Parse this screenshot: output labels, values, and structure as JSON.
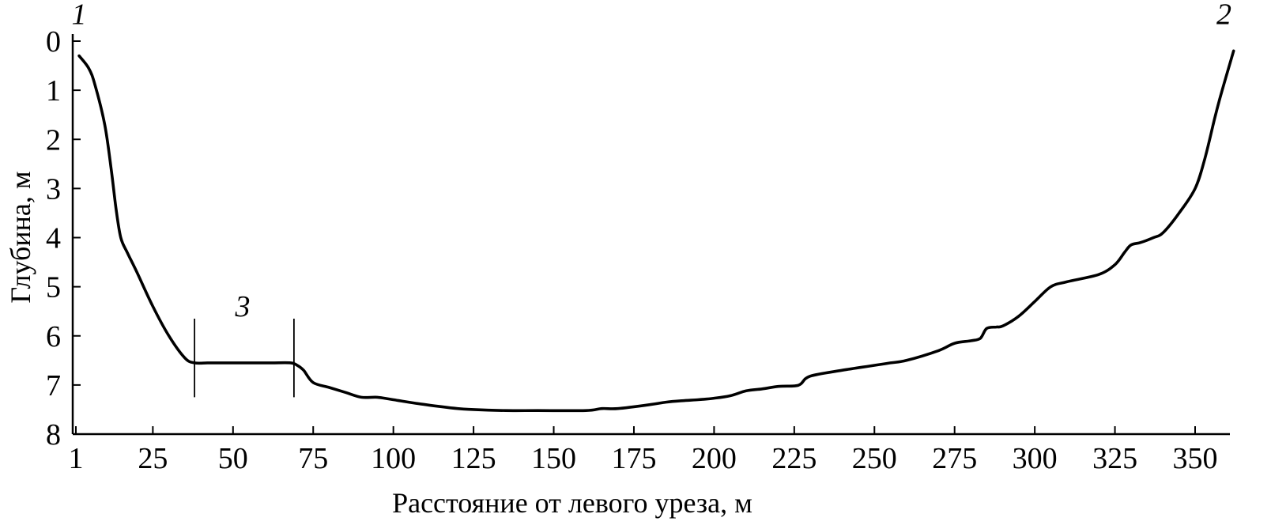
{
  "chart_data": {
    "type": "line",
    "title": "",
    "xlabel": "Расстояние от левого уреза, м",
    "ylabel": "Глубина, м",
    "xlim": [
      1,
      362
    ],
    "ylim": [
      0,
      8
    ],
    "y_inverted": true,
    "grid": false,
    "legend": "none",
    "x_ticks": [
      {
        "value": 1,
        "label": "1"
      },
      {
        "value": 25,
        "label": "25"
      },
      {
        "value": 50,
        "label": "50"
      },
      {
        "value": 75,
        "label": "75"
      },
      {
        "value": 100,
        "label": "100"
      },
      {
        "value": 125,
        "label": "125"
      },
      {
        "value": 150,
        "label": "150"
      },
      {
        "value": 175,
        "label": "175"
      },
      {
        "value": 200,
        "label": "200"
      },
      {
        "value": 225,
        "label": "225"
      },
      {
        "value": 250,
        "label": "250"
      },
      {
        "value": 275,
        "label": "275"
      },
      {
        "value": 300,
        "label": "300"
      },
      {
        "value": 325,
        "label": "325"
      },
      {
        "value": 350,
        "label": "350"
      }
    ],
    "y_ticks": [
      {
        "value": 0,
        "label": "0"
      },
      {
        "value": 1,
        "label": "1"
      },
      {
        "value": 2,
        "label": "2"
      },
      {
        "value": 3,
        "label": "3"
      },
      {
        "value": 4,
        "label": "4"
      },
      {
        "value": 5,
        "label": "5"
      },
      {
        "value": 6,
        "label": "6"
      },
      {
        "value": 7,
        "label": "7"
      },
      {
        "value": 8,
        "label": "8"
      }
    ],
    "series": [
      {
        "color": "#000000",
        "x": [
          2,
          5,
          7,
          10,
          12,
          13.5,
          15,
          17,
          20,
          25,
          30,
          35,
          38,
          42,
          47,
          55,
          62,
          68,
          70,
          72,
          75,
          80,
          85,
          90,
          95,
          100,
          110,
          120,
          125,
          135,
          145,
          160,
          165,
          170,
          180,
          185,
          190,
          195,
          200,
          205,
          210,
          215,
          220,
          225,
          227,
          230,
          240,
          250,
          255,
          260,
          270,
          275,
          280,
          283,
          285,
          288,
          290,
          295,
          300,
          305,
          310,
          320,
          325,
          328,
          330,
          333,
          337,
          340,
          345,
          350,
          353,
          356,
          358,
          362
        ],
        "y": [
          0.3,
          0.55,
          0.9,
          1.7,
          2.6,
          3.4,
          4.0,
          4.3,
          4.7,
          5.4,
          6.0,
          6.45,
          6.55,
          6.55,
          6.55,
          6.55,
          6.55,
          6.55,
          6.6,
          6.7,
          6.95,
          7.05,
          7.15,
          7.25,
          7.25,
          7.3,
          7.4,
          7.48,
          7.5,
          7.52,
          7.52,
          7.52,
          7.48,
          7.48,
          7.4,
          7.35,
          7.32,
          7.3,
          7.27,
          7.22,
          7.12,
          7.08,
          7.03,
          7.02,
          6.98,
          6.82,
          6.7,
          6.6,
          6.55,
          6.5,
          6.3,
          6.15,
          6.1,
          6.05,
          5.85,
          5.82,
          5.8,
          5.6,
          5.3,
          5.0,
          4.9,
          4.75,
          4.55,
          4.3,
          4.15,
          4.1,
          4.0,
          3.9,
          3.5,
          3.0,
          2.4,
          1.6,
          1.1,
          0.2
        ]
      }
    ],
    "annotations": [
      {
        "label": "1",
        "x": 2,
        "y": -0.35
      },
      {
        "label": "2",
        "x": 359,
        "y": -0.35
      },
      {
        "label": "3",
        "x": 53,
        "y": 5.6,
        "bracket": [
          38,
          69
        ]
      }
    ]
  }
}
